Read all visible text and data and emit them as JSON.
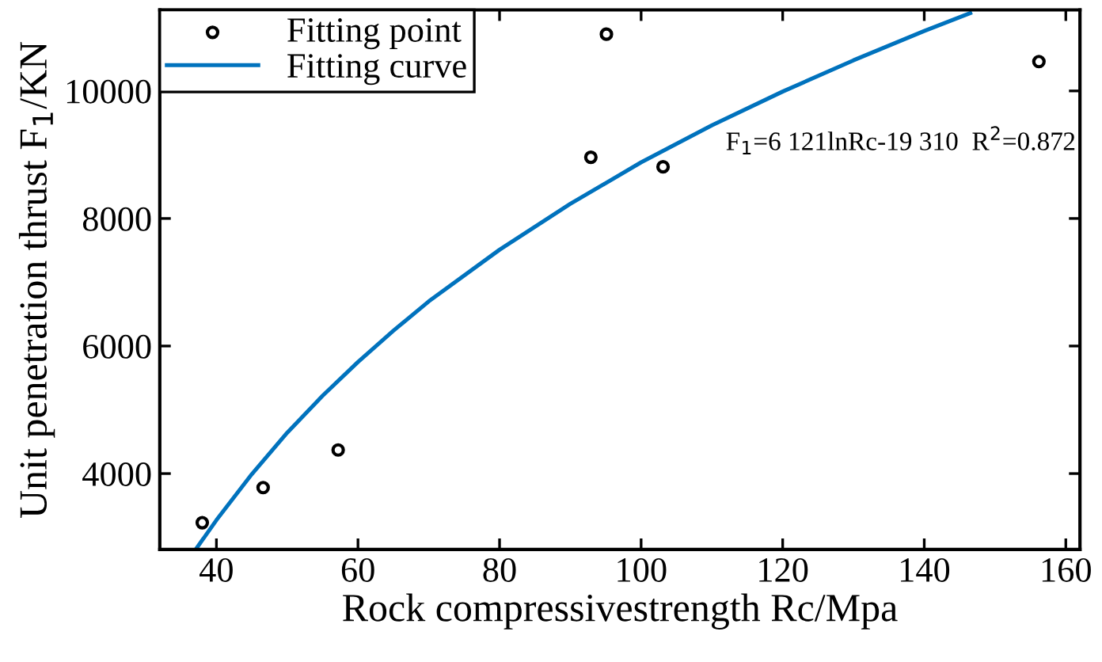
{
  "chart_data": {
    "type": "scatter",
    "xlabel": "Rock compressivestrength Rc/Mpa",
    "ylabel": "Unit penetration thrust F$_{1}$/KN",
    "annotations": [
      "F$_{1}$=6 121lnRc-19 310  R$^{2}$=0.872"
    ],
    "xlim": [
      32,
      162
    ],
    "ylim": [
      2810,
      11270
    ],
    "xticks": [
      40,
      60,
      80,
      100,
      120,
      140,
      160
    ],
    "yticks": [
      4000,
      6000,
      8000,
      10000
    ],
    "grid": false,
    "legend": "top left",
    "series": [
      {
        "name": "Fitting point",
        "color": "#000000",
        "marker": "circle",
        "x": [
          38.0,
          46.6,
          57.2,
          92.9,
          95.1,
          103.1,
          156.2
        ],
        "values": [
          3230,
          3780,
          4370,
          8960,
          10890,
          8810,
          10460
        ]
      },
      {
        "name": "Fitting curve",
        "type": "line",
        "color": "#0072bd",
        "marker": "none",
        "line_style": "solid",
        "x": [
          37.2,
          40,
          45,
          50,
          55,
          60,
          65,
          70,
          80,
          90,
          100,
          110,
          120,
          130,
          140,
          146.5
        ],
        "values": [
          2830,
          3270,
          3990,
          4640,
          5220,
          5750,
          6240,
          6700,
          7510,
          8230,
          8880,
          9460,
          9990,
          10480,
          10940,
          11220
        ]
      }
    ]
  }
}
